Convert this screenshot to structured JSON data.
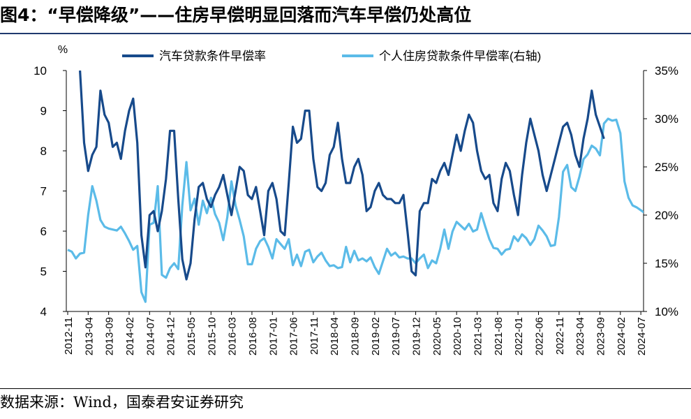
{
  "title": "图4：“早偿降级”——住房早偿明显回落而汽车早偿仍处高位",
  "source": "数据来源：Wind，国泰君安证券研究",
  "colors": {
    "auto": "#174a8b",
    "housing": "#5bbbe8",
    "title_rule": "#1f3a6e"
  },
  "chart_data": {
    "type": "line",
    "y_left": {
      "unit": "%",
      "lim": [
        4,
        10
      ],
      "ticks": [
        "4",
        "5",
        "6",
        "7",
        "8",
        "9",
        "10"
      ]
    },
    "y_right": {
      "lim": [
        10,
        35
      ],
      "ticks": [
        "10%",
        "15%",
        "20%",
        "25%",
        "30%",
        "35%"
      ]
    },
    "x_ticks": [
      "2012-11",
      "2013-04",
      "2013-09",
      "2014-02",
      "2014-07",
      "2014-12",
      "2015-05",
      "2015-10",
      "2016-03",
      "2016-08",
      "2017-01",
      "2017-06",
      "2017-11",
      "2018-04",
      "2018-09",
      "2019-02",
      "2019-07",
      "2019-12",
      "2020-05",
      "2020-10",
      "2021-03",
      "2021-08",
      "2022-01",
      "2022-06",
      "2022-11",
      "2023-04",
      "2023-09",
      "2024-02",
      "2024-07"
    ],
    "legend": "top",
    "series": [
      {
        "name": "汽车贷款条件早偿率",
        "axis": "left",
        "points": [
          [
            "2013-02",
            10.0
          ],
          [
            "2013-03",
            8.2
          ],
          [
            "2013-04",
            7.5
          ],
          [
            "2013-05",
            7.9
          ],
          [
            "2013-06",
            8.1
          ],
          [
            "2013-07",
            9.5
          ],
          [
            "2013-08",
            8.9
          ],
          [
            "2013-09",
            8.7
          ],
          [
            "2013-10",
            8.1
          ],
          [
            "2013-11",
            8.2
          ],
          [
            "2013-12",
            7.8
          ],
          [
            "2014-01",
            8.5
          ],
          [
            "2014-02",
            9.0
          ],
          [
            "2014-03",
            9.3
          ],
          [
            "2014-04",
            8.2
          ],
          [
            "2014-05",
            5.9
          ],
          [
            "2014-06",
            5.1
          ],
          [
            "2014-07",
            6.4
          ],
          [
            "2014-08",
            6.5
          ],
          [
            "2014-09",
            6.0
          ],
          [
            "2014-10",
            6.5
          ],
          [
            "2014-11",
            7.3
          ],
          [
            "2014-12",
            8.5
          ],
          [
            "2015-01",
            8.5
          ],
          [
            "2015-02",
            6.8
          ],
          [
            "2015-03",
            5.3
          ],
          [
            "2015-04",
            4.8
          ],
          [
            "2015-05",
            5.2
          ],
          [
            "2015-06",
            6.3
          ],
          [
            "2015-07",
            7.1
          ],
          [
            "2015-08",
            7.2
          ],
          [
            "2015-09",
            6.8
          ],
          [
            "2015-10",
            6.6
          ],
          [
            "2015-11",
            6.9
          ],
          [
            "2015-12",
            7.1
          ],
          [
            "2016-01",
            7.4
          ],
          [
            "2016-02",
            6.9
          ],
          [
            "2016-03",
            6.4
          ],
          [
            "2016-04",
            7.0
          ],
          [
            "2016-05",
            7.6
          ],
          [
            "2016-06",
            7.5
          ],
          [
            "2016-07",
            6.9
          ],
          [
            "2016-08",
            6.8
          ],
          [
            "2016-09",
            7.1
          ],
          [
            "2016-10",
            6.5
          ],
          [
            "2016-11",
            5.9
          ],
          [
            "2016-12",
            7.0
          ],
          [
            "2017-01",
            7.2
          ],
          [
            "2017-02",
            6.8
          ],
          [
            "2017-03",
            6.0
          ],
          [
            "2017-04",
            5.9
          ],
          [
            "2017-05",
            7.2
          ],
          [
            "2017-06",
            8.6
          ],
          [
            "2017-07",
            8.2
          ],
          [
            "2017-08",
            8.3
          ],
          [
            "2017-09",
            9.0
          ],
          [
            "2017-10",
            9.0
          ],
          [
            "2017-11",
            7.8
          ],
          [
            "2017-12",
            7.1
          ],
          [
            "2018-01",
            7.0
          ],
          [
            "2018-02",
            7.2
          ],
          [
            "2018-03",
            7.9
          ],
          [
            "2018-04",
            8.1
          ],
          [
            "2018-05",
            8.7
          ],
          [
            "2018-06",
            7.8
          ],
          [
            "2018-07",
            7.2
          ],
          [
            "2018-08",
            7.2
          ],
          [
            "2018-09",
            7.6
          ],
          [
            "2018-10",
            7.8
          ],
          [
            "2018-11",
            7.4
          ],
          [
            "2018-12",
            6.5
          ],
          [
            "2019-01",
            6.6
          ],
          [
            "2019-02",
            7.0
          ],
          [
            "2019-03",
            7.2
          ],
          [
            "2019-04",
            6.9
          ],
          [
            "2019-05",
            6.8
          ],
          [
            "2019-06",
            6.8
          ],
          [
            "2019-07",
            6.7
          ],
          [
            "2019-08",
            6.7
          ],
          [
            "2019-09",
            6.9
          ],
          [
            "2019-10",
            6.0
          ],
          [
            "2019-11",
            5.0
          ],
          [
            "2019-12",
            4.9
          ],
          [
            "2020-01",
            6.5
          ],
          [
            "2020-02",
            6.7
          ],
          [
            "2020-03",
            6.7
          ],
          [
            "2020-04",
            7.3
          ],
          [
            "2020-05",
            7.2
          ],
          [
            "2020-06",
            7.5
          ],
          [
            "2020-07",
            7.7
          ],
          [
            "2020-08",
            7.4
          ],
          [
            "2020-09",
            7.9
          ],
          [
            "2020-10",
            8.4
          ],
          [
            "2020-11",
            8.0
          ],
          [
            "2020-12",
            8.5
          ],
          [
            "2021-01",
            8.9
          ],
          [
            "2021-02",
            8.7
          ],
          [
            "2021-03",
            8.0
          ],
          [
            "2021-04",
            7.5
          ],
          [
            "2021-05",
            7.3
          ],
          [
            "2021-06",
            7.4
          ],
          [
            "2021-07",
            6.7
          ],
          [
            "2021-08",
            6.5
          ],
          [
            "2021-09",
            7.3
          ],
          [
            "2021-10",
            7.7
          ],
          [
            "2021-11",
            7.5
          ],
          [
            "2021-12",
            6.9
          ],
          [
            "2022-01",
            6.4
          ],
          [
            "2022-02",
            7.4
          ],
          [
            "2022-03",
            8.2
          ],
          [
            "2022-04",
            8.8
          ],
          [
            "2022-05",
            8.4
          ],
          [
            "2022-06",
            8.0
          ],
          [
            "2022-07",
            7.4
          ],
          [
            "2022-08",
            7.0
          ],
          [
            "2022-09",
            7.4
          ],
          [
            "2022-10",
            7.8
          ],
          [
            "2022-11",
            8.2
          ],
          [
            "2022-12",
            8.6
          ],
          [
            "2023-01",
            8.7
          ],
          [
            "2023-02",
            8.4
          ],
          [
            "2023-03",
            7.9
          ],
          [
            "2023-04",
            7.6
          ],
          [
            "2023-05",
            8.3
          ],
          [
            "2023-06",
            8.8
          ],
          [
            "2023-07",
            9.5
          ],
          [
            "2023-08",
            8.9
          ],
          [
            "2023-09",
            8.6
          ],
          [
            "2023-10",
            8.3
          ]
        ]
      },
      {
        "name": "个人住房贷款条件早偿率(右轴)",
        "axis": "right",
        "points": [
          [
            "2012-11",
            16.4
          ],
          [
            "2012-12",
            16.2
          ],
          [
            "2013-01",
            15.5
          ],
          [
            "2013-02",
            16.0
          ],
          [
            "2013-03",
            16.1
          ],
          [
            "2013-04",
            20.0
          ],
          [
            "2013-05",
            23.0
          ],
          [
            "2013-06",
            21.5
          ],
          [
            "2013-07",
            19.5
          ],
          [
            "2013-08",
            18.8
          ],
          [
            "2013-09",
            18.6
          ],
          [
            "2013-10",
            18.5
          ],
          [
            "2013-11",
            18.4
          ],
          [
            "2013-12",
            18.8
          ],
          [
            "2014-01",
            18.1
          ],
          [
            "2014-02",
            17.3
          ],
          [
            "2014-03",
            16.4
          ],
          [
            "2014-04",
            16.8
          ],
          [
            "2014-05",
            12.0
          ],
          [
            "2014-06",
            11.0
          ],
          [
            "2014-07",
            19.0
          ],
          [
            "2014-08",
            19.2
          ],
          [
            "2014-09",
            23.0
          ],
          [
            "2014-10",
            13.8
          ],
          [
            "2014-11",
            13.5
          ],
          [
            "2014-12",
            14.5
          ],
          [
            "2015-01",
            15.0
          ],
          [
            "2015-02",
            14.4
          ],
          [
            "2015-03",
            21.0
          ],
          [
            "2015-04",
            25.5
          ],
          [
            "2015-05",
            20.5
          ],
          [
            "2015-06",
            21.7
          ],
          [
            "2015-07",
            19.0
          ],
          [
            "2015-08",
            21.5
          ],
          [
            "2015-09",
            20.2
          ],
          [
            "2015-10",
            21.8
          ],
          [
            "2015-11",
            20.1
          ],
          [
            "2015-12",
            19.2
          ],
          [
            "2016-01",
            17.4
          ],
          [
            "2016-02",
            19.8
          ],
          [
            "2016-03",
            23.5
          ],
          [
            "2016-04",
            21.0
          ],
          [
            "2016-05",
            19.5
          ],
          [
            "2016-06",
            17.8
          ],
          [
            "2016-07",
            14.9
          ],
          [
            "2016-08",
            14.9
          ],
          [
            "2016-09",
            16.5
          ],
          [
            "2016-10",
            17.3
          ],
          [
            "2016-11",
            17.6
          ],
          [
            "2016-12",
            16.7
          ],
          [
            "2017-01",
            15.5
          ],
          [
            "2017-02",
            17.5
          ],
          [
            "2017-03",
            17.0
          ],
          [
            "2017-04",
            16.5
          ],
          [
            "2017-05",
            17.5
          ],
          [
            "2017-06",
            14.8
          ],
          [
            "2017-07",
            15.9
          ],
          [
            "2017-08",
            14.7
          ],
          [
            "2017-09",
            16.2
          ],
          [
            "2017-10",
            16.4
          ],
          [
            "2017-11",
            15.1
          ],
          [
            "2017-12",
            15.7
          ],
          [
            "2018-01",
            16.1
          ],
          [
            "2018-02",
            15.3
          ],
          [
            "2018-03",
            14.7
          ],
          [
            "2018-04",
            14.8
          ],
          [
            "2018-05",
            14.5
          ],
          [
            "2018-06",
            14.6
          ],
          [
            "2018-07",
            16.7
          ],
          [
            "2018-08",
            15.1
          ],
          [
            "2018-09",
            16.3
          ],
          [
            "2018-10",
            15.3
          ],
          [
            "2018-11",
            15.5
          ],
          [
            "2018-12",
            15.2
          ],
          [
            "2019-01",
            15.6
          ],
          [
            "2019-02",
            14.6
          ],
          [
            "2019-03",
            13.9
          ],
          [
            "2019-04",
            15.2
          ],
          [
            "2019-05",
            16.5
          ],
          [
            "2019-06",
            15.8
          ],
          [
            "2019-07",
            16.1
          ],
          [
            "2019-08",
            15.6
          ],
          [
            "2019-09",
            15.7
          ],
          [
            "2019-10",
            15.5
          ],
          [
            "2019-11",
            15.5
          ],
          [
            "2019-12",
            15.0
          ],
          [
            "2020-01",
            15.5
          ],
          [
            "2020-02",
            15.9
          ],
          [
            "2020-03",
            14.5
          ],
          [
            "2020-04",
            15.3
          ],
          [
            "2020-05",
            15.0
          ],
          [
            "2020-06",
            16.5
          ],
          [
            "2020-07",
            18.5
          ],
          [
            "2020-08",
            16.5
          ],
          [
            "2020-09",
            18.3
          ],
          [
            "2020-10",
            19.3
          ],
          [
            "2020-11",
            18.9
          ],
          [
            "2020-12",
            18.5
          ],
          [
            "2021-01",
            19.1
          ],
          [
            "2021-02",
            18.3
          ],
          [
            "2021-03",
            18.5
          ],
          [
            "2021-04",
            20.2
          ],
          [
            "2021-05",
            18.8
          ],
          [
            "2021-06",
            17.5
          ],
          [
            "2021-07",
            16.6
          ],
          [
            "2021-08",
            16.5
          ],
          [
            "2021-09",
            15.9
          ],
          [
            "2021-10",
            16.4
          ],
          [
            "2021-11",
            16.5
          ],
          [
            "2021-12",
            17.8
          ],
          [
            "2022-01",
            17.3
          ],
          [
            "2022-02",
            18.0
          ],
          [
            "2022-03",
            17.6
          ],
          [
            "2022-04",
            16.9
          ],
          [
            "2022-05",
            17.5
          ],
          [
            "2022-06",
            18.9
          ],
          [
            "2022-07",
            18.4
          ],
          [
            "2022-08",
            17.8
          ],
          [
            "2022-09",
            16.8
          ],
          [
            "2022-10",
            16.9
          ],
          [
            "2022-11",
            19.8
          ],
          [
            "2022-12",
            24.5
          ],
          [
            "2023-01",
            25.2
          ],
          [
            "2023-02",
            22.9
          ],
          [
            "2023-03",
            22.5
          ],
          [
            "2023-04",
            24.0
          ],
          [
            "2023-05",
            25.8
          ],
          [
            "2023-06",
            26.3
          ],
          [
            "2023-07",
            27.2
          ],
          [
            "2023-08",
            26.9
          ],
          [
            "2023-09",
            26.2
          ],
          [
            "2023-10",
            29.5
          ],
          [
            "2023-11",
            30.0
          ],
          [
            "2023-12",
            29.8
          ],
          [
            "2024-01",
            29.9
          ],
          [
            "2024-02",
            28.5
          ],
          [
            "2024-03",
            23.5
          ],
          [
            "2024-04",
            21.8
          ],
          [
            "2024-05",
            21.0
          ],
          [
            "2024-06",
            20.8
          ],
          [
            "2024-07",
            20.5
          ],
          [
            "2024-08",
            20.2
          ]
        ]
      }
    ]
  }
}
